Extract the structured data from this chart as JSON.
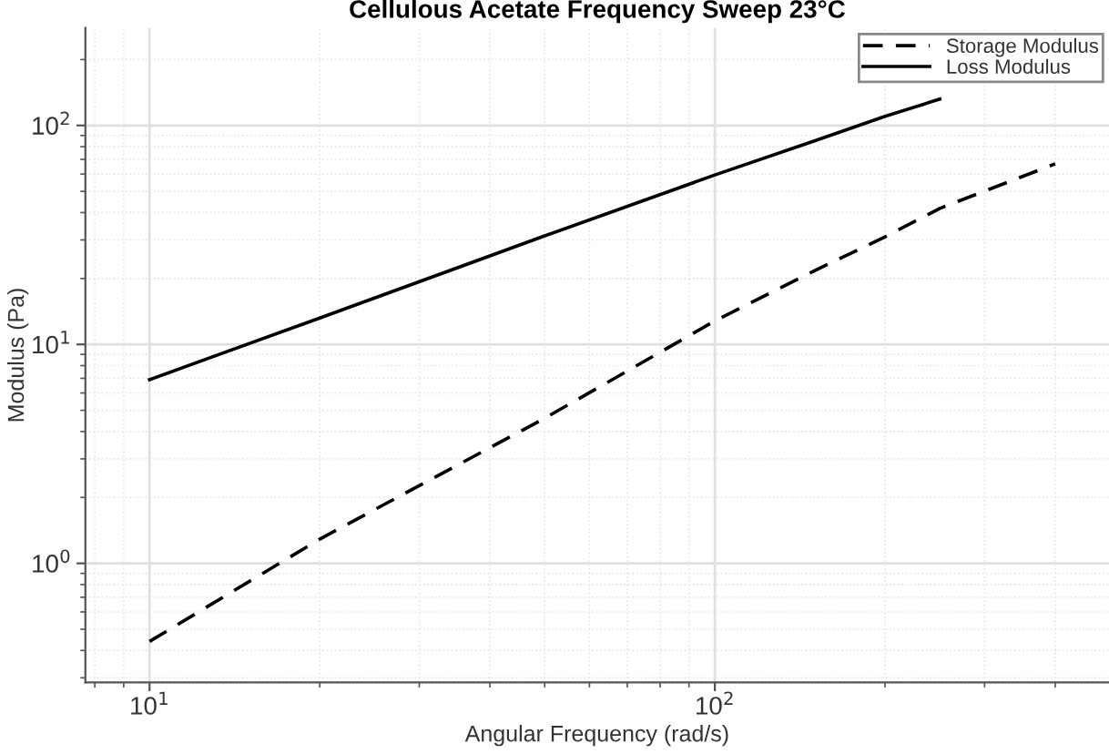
{
  "chart_data": {
    "type": "line",
    "title": "Cellulous Acetate Frequency Sweep 23°C",
    "xlabel": "Angular Frequency (rad/s)",
    "ylabel": "Modulus (Pa)",
    "log": "xy",
    "xlim": [
      7.7,
      498
    ],
    "ylim": [
      0.286,
      279
    ],
    "xticks": [
      {
        "value": 10,
        "label": "10$^{1}$"
      },
      {
        "value": 100,
        "label": "10$^{2}$"
      }
    ],
    "yticks": [
      {
        "value": 1,
        "label": "10$^{0}$"
      },
      {
        "value": 10,
        "label": "10$^{1}$"
      },
      {
        "value": 100,
        "label": "10$^{2}$"
      }
    ],
    "grid": true,
    "legend": "top right",
    "series": [
      {
        "name": "Storage Modulus",
        "color": "#000000",
        "line_style": "dashed",
        "x": [
          10,
          20,
          50,
          100,
          150,
          200,
          250,
          400
        ],
        "values": [
          0.44,
          1.29,
          4.6,
          12.8,
          21.7,
          31,
          41.8,
          66.8
        ]
      },
      {
        "name": "Loss Modulus",
        "color": "#000000",
        "line_style": "solid",
        "x": [
          10,
          20,
          50,
          100,
          150,
          200,
          250
        ],
        "values": [
          6.9,
          13.2,
          31.3,
          59.4,
          85,
          110,
          132
        ]
      }
    ]
  }
}
